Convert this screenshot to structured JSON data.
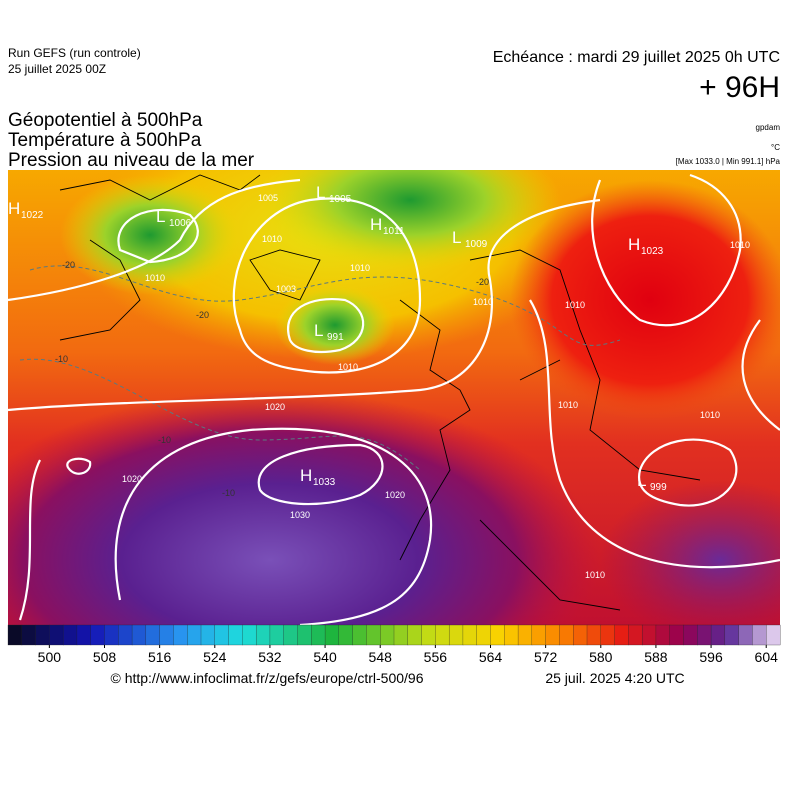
{
  "header": {
    "run": "Run GEFS (run controle)",
    "run_date": "25 juillet 2025 00Z",
    "valid": "Echéance : mardi 29 juillet 2025 0h UTC",
    "lead": "+ 96H"
  },
  "titles": [
    "Géopotentiel à 500hPa",
    "Température à 500hPa",
    "Pression au niveau de la mer"
  ],
  "units": {
    "geopotential": "gpdam",
    "temperature": "°C",
    "pressure": "[Max 1033.0 | Min 991.1] hPa"
  },
  "centers": [
    {
      "letter": "H",
      "value": "1022"
    },
    {
      "letter": "L",
      "value": "1006"
    },
    {
      "letter": "L",
      "value": "1005"
    },
    {
      "letter": "H",
      "value": "1011"
    },
    {
      "letter": "L",
      "value": "1009"
    },
    {
      "letter": "H",
      "value": "1023"
    },
    {
      "letter": "L",
      "value": "991"
    },
    {
      "letter": "H",
      "value": "1033"
    },
    {
      "letter": "L",
      "value": "999"
    }
  ],
  "isobar_labels": [
    "1005",
    "1010",
    "1010",
    "1003",
    "1010",
    "1010",
    "1020",
    "1020",
    "1030",
    "1020",
    "1010",
    "1010",
    "1010",
    "1010",
    "1010",
    "1010"
  ],
  "isotherm_labels": [
    "-20",
    "-10",
    "-10",
    "-10",
    "-20",
    "-20"
  ],
  "colorbar": {
    "lim": [
      494,
      606
    ],
    "step": 2,
    "ticks": [
      500,
      508,
      516,
      524,
      532,
      540,
      548,
      556,
      564,
      572,
      580,
      588,
      596,
      604
    ]
  },
  "footer": {
    "source": "© http://www.infoclimat.fr/z/gefs/europe/ctrl-500/96",
    "generated": "25 juil. 2025  4:20 UTC"
  }
}
